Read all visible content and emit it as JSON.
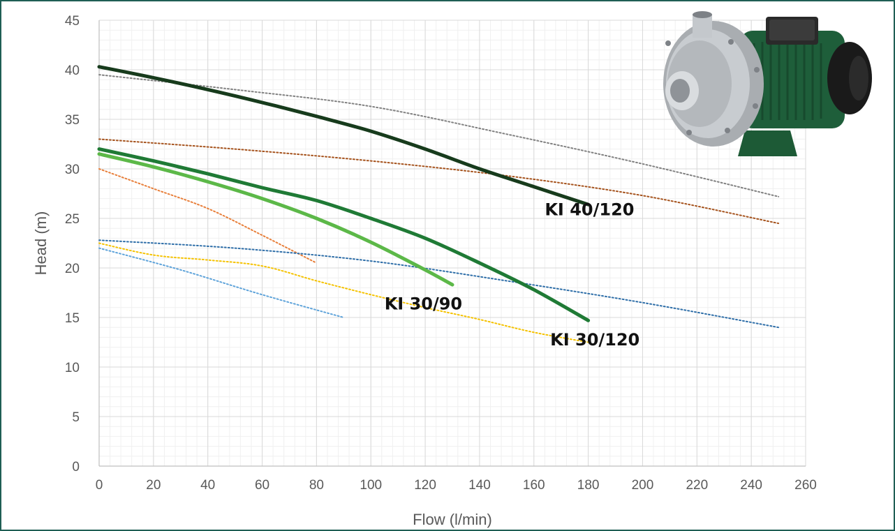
{
  "chart_data": {
    "type": "line",
    "xlabel": "Flow (l/min)",
    "ylabel": "Head (m)",
    "xlim": [
      0,
      260
    ],
    "ylim": [
      0,
      45
    ],
    "x_ticks": [
      0,
      20,
      40,
      60,
      80,
      100,
      120,
      140,
      160,
      180,
      200,
      220,
      240,
      260
    ],
    "y_ticks": [
      0,
      5,
      10,
      15,
      20,
      25,
      30,
      35,
      40,
      45
    ],
    "grid": "major and minor gridlines",
    "legend": "none",
    "series": [
      {
        "name": "KI 40/120",
        "style": "solid",
        "color": "#173b1c",
        "x": [
          0,
          20,
          40,
          60,
          80,
          100,
          120,
          140,
          160,
          180
        ],
        "y": [
          40.3,
          39.2,
          38.0,
          36.7,
          35.3,
          33.8,
          32.0,
          30.0,
          28.2,
          26.4
        ]
      },
      {
        "name": "KI 30/120",
        "style": "solid",
        "color": "#1f7a35",
        "x": [
          0,
          20,
          40,
          60,
          80,
          100,
          120,
          140,
          160,
          180
        ],
        "y": [
          32.0,
          30.8,
          29.5,
          28.1,
          26.8,
          25.0,
          23.0,
          20.5,
          17.8,
          14.7
        ]
      },
      {
        "name": "KI 30/90",
        "style": "solid",
        "color": "#5cb848",
        "x": [
          0,
          20,
          40,
          60,
          80,
          100,
          120,
          130
        ],
        "y": [
          31.5,
          30.2,
          28.7,
          27.0,
          25.0,
          22.6,
          19.8,
          18.3
        ]
      },
      {
        "style": "dotted",
        "color": "#808080",
        "x": [
          0,
          50,
          100,
          150,
          200,
          250
        ],
        "y": [
          39.5,
          38.0,
          36.3,
          33.5,
          30.5,
          27.2
        ]
      },
      {
        "style": "dotted",
        "color": "#a5521c",
        "x": [
          0,
          50,
          100,
          150,
          200,
          250
        ],
        "y": [
          33.0,
          32.0,
          30.8,
          29.3,
          27.3,
          24.5
        ]
      },
      {
        "style": "dotted",
        "color": "#e87f3a",
        "x": [
          0,
          20,
          40,
          60,
          80
        ],
        "y": [
          30.0,
          28.0,
          26.0,
          23.3,
          20.5
        ]
      },
      {
        "style": "dotted",
        "color": "#2e6ea8",
        "x": [
          0,
          50,
          100,
          150,
          200,
          250
        ],
        "y": [
          22.8,
          22.0,
          20.7,
          18.7,
          16.5,
          14.0
        ]
      },
      {
        "style": "dotted",
        "color": "#f5c200",
        "x": [
          0,
          20,
          40,
          60,
          80,
          100,
          120,
          140,
          160,
          180
        ],
        "y": [
          22.5,
          21.3,
          20.8,
          20.2,
          18.7,
          17.3,
          16.0,
          14.8,
          13.5,
          12.5
        ]
      },
      {
        "style": "dotted",
        "color": "#5ea3da",
        "x": [
          0,
          30,
          60,
          90
        ],
        "y": [
          22.0,
          19.8,
          17.3,
          15.0
        ]
      }
    ],
    "annotations": [
      {
        "text": "KI 40/120",
        "x": 164,
        "y": 25.3
      },
      {
        "text": "KI 30/90",
        "x": 105,
        "y": 15.8
      },
      {
        "text": "KI 30/120",
        "x": 166,
        "y": 12.2
      }
    ]
  }
}
